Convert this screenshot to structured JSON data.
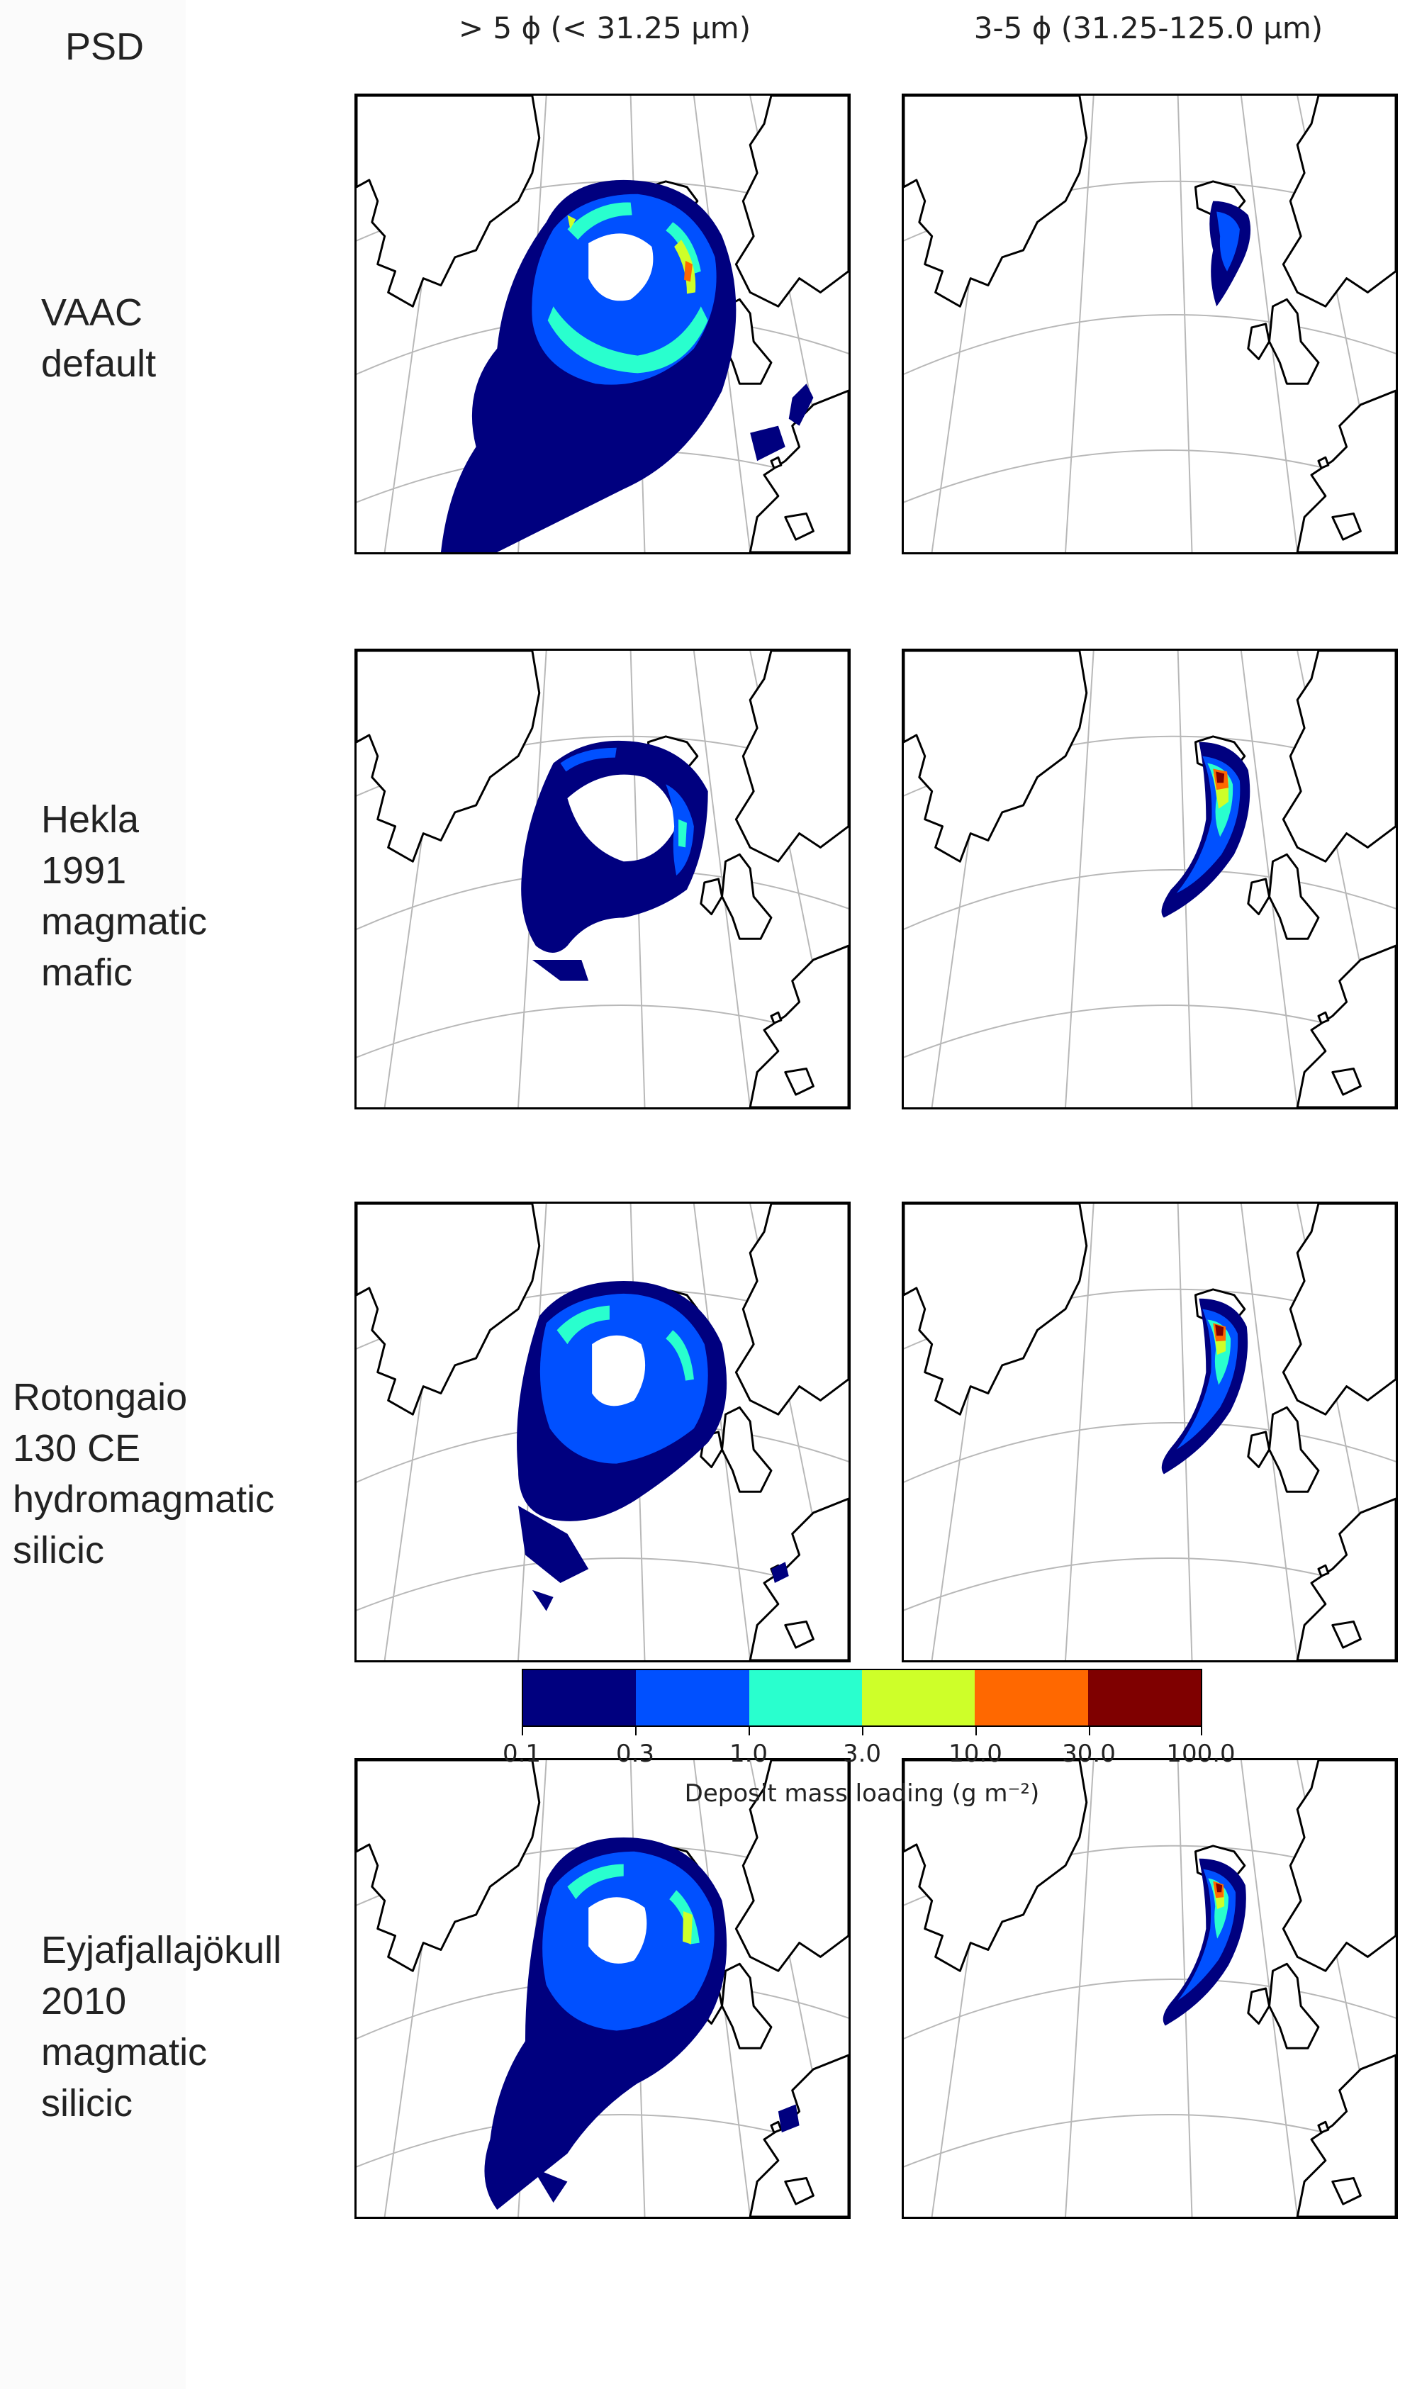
{
  "header": {
    "psd_label": "PSD",
    "columns": [
      {
        "label": "> 5 ϕ (< 31.25 μm)"
      },
      {
        "label": "3-5 ϕ (31.25-125.0 μm)"
      }
    ]
  },
  "rows": [
    {
      "label": "VAAC\ndefault"
    },
    {
      "label": "Hekla\n1991\nmagmatic\nmafic"
    },
    {
      "label": "Rotongaio\n130 CE\nhydromagmatic\nsilicic"
    },
    {
      "label": "Eyjafjallajökull\n2010\nmagmatic\nsilicic"
    }
  ],
  "colorbar": {
    "title": "Deposit mass loading (g m⁻²)",
    "ticks": [
      "0.1",
      "0.3",
      "1.0",
      "3.0",
      "10.0",
      "30.0",
      "100.0"
    ],
    "colors": [
      "#00007f",
      "#0050ff",
      "#29ffce",
      "#ceff29",
      "#ff6800",
      "#7f0000"
    ]
  },
  "map_colors": {
    "level1": "#00007f",
    "level2": "#0050ff",
    "level3": "#29ffce",
    "level4": "#ceff29",
    "level5": "#ff6800",
    "level6": "#7f0000",
    "graticule": "#b8b8b8",
    "coast": "#000000"
  }
}
